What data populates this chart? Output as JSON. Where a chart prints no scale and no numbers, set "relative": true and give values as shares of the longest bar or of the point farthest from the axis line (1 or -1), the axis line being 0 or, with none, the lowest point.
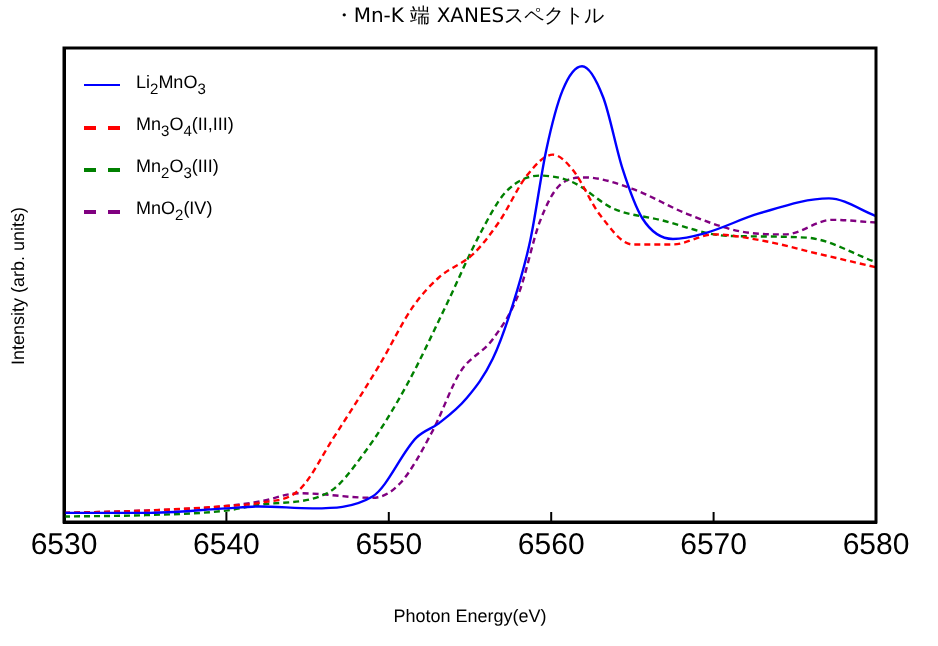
{
  "chart_data": {
    "type": "line",
    "title": "・Mn-K 端 XANESスペクトル",
    "xlabel": "Photon Energy(eV)",
    "ylabel": "Intensity (arb. units)",
    "relative": true,
    "xlim": [
      6530,
      6580
    ],
    "xticks": [
      6530,
      6540,
      6550,
      6560,
      6570,
      6580
    ],
    "grid": false,
    "legend": "top left",
    "marker": "none",
    "series": [
      {
        "name": "Li$_{2}$MnO$_{3}$",
        "color": "#0000ff",
        "line_style": "solid",
        "x": [
          6530,
          6535,
          6540,
          6542.05,
          6545.3,
          6549.0,
          6551.7,
          6553.1,
          6554.8,
          6556.4,
          6557.6,
          6558.7,
          6559.7,
          6560.7,
          6561.9,
          6563.2,
          6564.4,
          6565.6,
          6567.5,
          6569.5,
          6572.8,
          6577.1,
          6580
        ],
        "values": [
          0.02,
          0.02,
          0.03,
          0.034,
          0.03,
          0.056,
          0.185,
          0.217,
          0.272,
          0.358,
          0.473,
          0.616,
          0.817,
          0.947,
          1.0,
          0.932,
          0.774,
          0.667,
          0.621,
          0.634,
          0.677,
          0.71,
          0.671
        ]
      },
      {
        "name": "Mn$_{3}$O$_{4}$(II,III)",
        "color": "#ff0000",
        "line_style": "dashed",
        "x": [
          6530,
          6535,
          6540,
          6542.05,
          6544.5,
          6546.6,
          6549.4,
          6551.5,
          6553.1,
          6555.2,
          6556.8,
          6558.5,
          6560.1,
          6561.3,
          6563.0,
          6565.0,
          6567.5,
          6570.0,
          6573.2,
          6576.5,
          6580
        ],
        "values": [
          0.02,
          0.025,
          0.035,
          0.042,
          0.071,
          0.185,
          0.343,
          0.473,
          0.537,
          0.588,
          0.659,
          0.76,
          0.806,
          0.774,
          0.674,
          0.609,
          0.609,
          0.631,
          0.616,
          0.588,
          0.559
        ]
      },
      {
        "name": "Mn$_{2}$O$_{3}$(III)",
        "color": "#008000",
        "line_style": "dashed",
        "x": [
          6530,
          6535,
          6540,
          6542.05,
          6546.2,
          6548.6,
          6551.1,
          6553.5,
          6555.6,
          6557.2,
          6559.3,
          6561.3,
          6563.8,
          6566.7,
          6570.8,
          6575.7,
          6580
        ],
        "values": [
          0.012,
          0.015,
          0.025,
          0.038,
          0.063,
          0.157,
          0.3,
          0.473,
          0.631,
          0.724,
          0.76,
          0.746,
          0.688,
          0.663,
          0.628,
          0.624,
          0.57
        ]
      },
      {
        "name": "MnO$_{2}$(IV)",
        "color": "#800080",
        "line_style": "dashed",
        "x": [
          6530,
          6535,
          6540,
          6542.05,
          6544.5,
          6549.0,
          6550.7,
          6552.7,
          6554.4,
          6556.4,
          6558.0,
          6559.3,
          6560.5,
          6562.1,
          6565.0,
          6568.3,
          6571.6,
          6574.4,
          6577.3,
          6580
        ],
        "values": [
          0.02,
          0.025,
          0.035,
          0.045,
          0.063,
          0.053,
          0.085,
          0.2,
          0.329,
          0.401,
          0.501,
          0.659,
          0.738,
          0.756,
          0.731,
          0.677,
          0.638,
          0.631,
          0.663,
          0.657
        ]
      }
    ]
  }
}
